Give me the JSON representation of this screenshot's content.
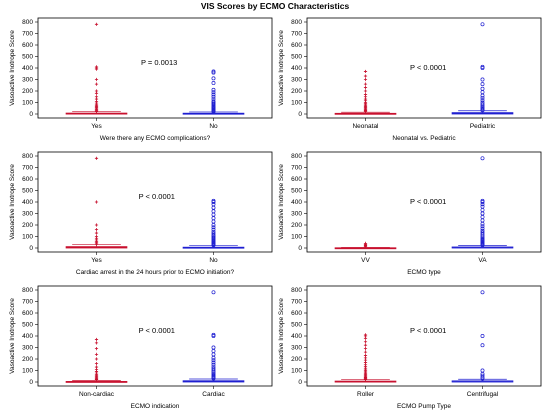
{
  "title": "VIS Scores by ECMO Characteristics",
  "colors": {
    "group1": "#c8102e",
    "group2": "#1f1fd1",
    "axis": "#000000"
  },
  "chart_data": [
    {
      "type": "box",
      "xlabel": "Were there any ECMO complications?",
      "ylabel": "Vasoactive Inotrope Score",
      "ylim": [
        0,
        800
      ],
      "yticks": [
        0,
        100,
        200,
        300,
        400,
        500,
        600,
        700,
        800
      ],
      "categories": [
        "Yes",
        "No"
      ],
      "p_value": "P = 0.0013",
      "series": [
        {
          "category": "Yes",
          "marker": "+",
          "q1": 0,
          "median": 3,
          "q3": 8,
          "whisker_low": 0,
          "whisker_high": 20,
          "outliers": [
            25,
            30,
            38,
            45,
            55,
            62,
            70,
            80,
            95,
            110,
            130,
            150,
            180,
            200,
            260,
            300,
            390,
            400,
            410,
            780
          ]
        },
        {
          "category": "No",
          "marker": "o",
          "q1": 0,
          "median": 2,
          "q3": 7,
          "whisker_low": 0,
          "whisker_high": 18,
          "outliers": [
            20,
            25,
            30,
            35,
            40,
            48,
            55,
            60,
            70,
            80,
            90,
            100,
            110,
            130,
            150,
            170,
            190,
            210,
            270,
            310,
            360,
            370
          ]
        }
      ]
    },
    {
      "type": "box",
      "xlabel": "Neonatal vs. Pediatric",
      "ylabel": "Vasoactive Inotrope Score",
      "ylim": [
        0,
        800
      ],
      "yticks": [
        0,
        100,
        200,
        300,
        400,
        500,
        600,
        700,
        800
      ],
      "categories": [
        "Neonatal",
        "Pediatric"
      ],
      "p_value": "P < 0.0001",
      "series": [
        {
          "category": "Neonatal",
          "marker": "+",
          "q1": 0,
          "median": 2,
          "q3": 6,
          "whisker_low": 0,
          "whisker_high": 15,
          "outliers": [
            18,
            22,
            28,
            34,
            40,
            48,
            55,
            62,
            70,
            80,
            90,
            100,
            115,
            130,
            150,
            170,
            200,
            230,
            260,
            300,
            330,
            370
          ]
        },
        {
          "category": "Pediatric",
          "marker": "o",
          "q1": 0,
          "median": 4,
          "q3": 12,
          "whisker_low": 0,
          "whisker_high": 28,
          "outliers": [
            32,
            40,
            50,
            60,
            72,
            85,
            100,
            120,
            140,
            160,
            190,
            220,
            260,
            300,
            400,
            410,
            780
          ]
        }
      ]
    },
    {
      "type": "box",
      "xlabel": "Cardiac arrest in the 24 hours prior to ECMO initiation?",
      "ylabel": "Vasoactive Inotrope Score",
      "ylim": [
        0,
        800
      ],
      "yticks": [
        0,
        100,
        200,
        300,
        400,
        500,
        600,
        700,
        800
      ],
      "categories": [
        "Yes",
        "No"
      ],
      "p_value": "P < 0.0001",
      "series": [
        {
          "category": "Yes",
          "marker": "+",
          "q1": 0,
          "median": 4,
          "q3": 12,
          "whisker_low": 0,
          "whisker_high": 30,
          "outliers": [
            35,
            45,
            55,
            70,
            85,
            100,
            130,
            160,
            200,
            400,
            780
          ]
        },
        {
          "category": "No",
          "marker": "o",
          "q1": 0,
          "median": 2,
          "q3": 7,
          "whisker_low": 0,
          "whisker_high": 20,
          "outliers": [
            25,
            30,
            38,
            45,
            52,
            60,
            70,
            80,
            90,
            100,
            110,
            125,
            140,
            160,
            180,
            200,
            230,
            260,
            290,
            320,
            350,
            380,
            400,
            410
          ]
        }
      ]
    },
    {
      "type": "box",
      "xlabel": "ECMO type",
      "ylabel": "Vasoactive Inotrope Score",
      "ylim": [
        0,
        800
      ],
      "yticks": [
        0,
        100,
        200,
        300,
        400,
        500,
        600,
        700,
        800
      ],
      "categories": [
        "VV",
        "VA"
      ],
      "p_value": "P < 0.0001",
      "series": [
        {
          "category": "VV",
          "marker": "+",
          "q1": 0,
          "median": 0,
          "q3": 2,
          "whisker_low": 0,
          "whisker_high": 5,
          "outliers": [
            10,
            18,
            25,
            32,
            40
          ]
        },
        {
          "category": "VA",
          "marker": "o",
          "q1": 0,
          "median": 3,
          "q3": 9,
          "whisker_low": 0,
          "whisker_high": 22,
          "outliers": [
            26,
            32,
            40,
            48,
            56,
            64,
            72,
            82,
            92,
            105,
            120,
            135,
            150,
            170,
            190,
            210,
            240,
            270,
            300,
            330,
            360,
            380,
            400,
            410,
            780
          ]
        }
      ]
    },
    {
      "type": "box",
      "xlabel": "ECMO indication",
      "ylabel": "Vasoactive Inotrope Score",
      "ylim": [
        0,
        800
      ],
      "yticks": [
        0,
        100,
        200,
        300,
        400,
        500,
        600,
        700,
        800
      ],
      "categories": [
        "Non-cardiac",
        "Cardiac"
      ],
      "p_value": "P < 0.0001",
      "series": [
        {
          "category": "Non-cardiac",
          "marker": "+",
          "q1": 0,
          "median": 1,
          "q3": 5,
          "whisker_low": 0,
          "whisker_high": 14,
          "outliers": [
            18,
            24,
            30,
            38,
            46,
            55,
            65,
            78,
            92,
            110,
            130,
            160,
            200,
            240,
            290,
            340,
            370
          ]
        },
        {
          "category": "Cardiac",
          "marker": "o",
          "q1": 0,
          "median": 4,
          "q3": 11,
          "whisker_low": 0,
          "whisker_high": 26,
          "outliers": [
            30,
            38,
            46,
            55,
            65,
            75,
            88,
            100,
            115,
            130,
            150,
            170,
            190,
            210,
            240,
            270,
            300,
            400,
            410,
            780
          ]
        }
      ]
    },
    {
      "type": "box",
      "xlabel": "ECMO Pump Type",
      "ylabel": "Vasoactive Inotrope Score",
      "ylim": [
        0,
        800
      ],
      "yticks": [
        0,
        100,
        200,
        300,
        400,
        500,
        600,
        700,
        800
      ],
      "categories": [
        "Roller",
        "Centrifugal"
      ],
      "p_value": "P < 0.0001",
      "series": [
        {
          "category": "Roller",
          "marker": "+",
          "q1": 0,
          "median": 2,
          "q3": 8,
          "whisker_low": 0,
          "whisker_high": 20,
          "outliers": [
            24,
            30,
            36,
            42,
            50,
            58,
            66,
            75,
            85,
            95,
            105,
            120,
            135,
            150,
            170,
            190,
            210,
            230,
            260,
            290,
            320,
            350,
            380,
            400,
            410
          ]
        },
        {
          "category": "Centrifugal",
          "marker": "o",
          "q1": 0,
          "median": 3,
          "q3": 10,
          "whisker_low": 0,
          "whisker_high": 24,
          "outliers": [
            30,
            40,
            55,
            70,
            100,
            320,
            400,
            780
          ]
        }
      ]
    }
  ]
}
